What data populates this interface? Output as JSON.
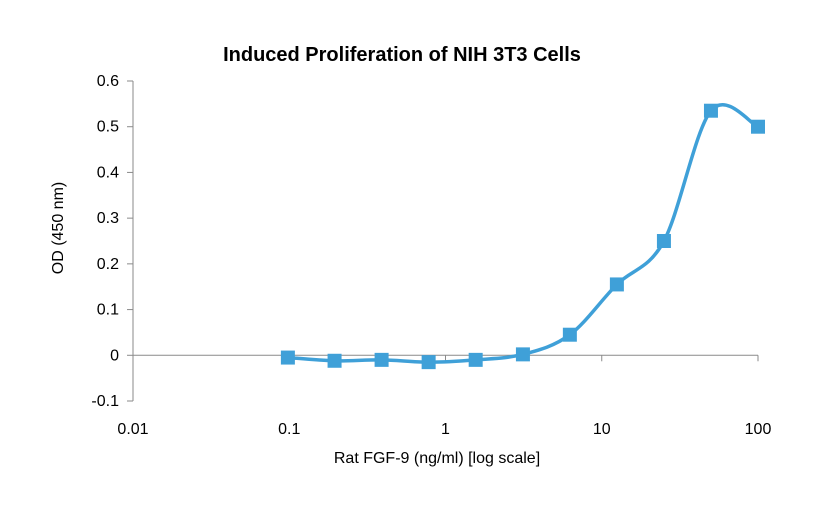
{
  "chart_data": {
    "type": "line",
    "title": "Induced Proliferation of NIH 3T3 Cells",
    "xlabel": "Rat FGF-9 (ng/ml) [log scale]",
    "ylabel": "OD (450 nm)",
    "x_scale": "log",
    "xlim": [
      0.01,
      100
    ],
    "ylim": [
      -0.1,
      0.6
    ],
    "x_ticks": [
      0.01,
      0.1,
      1,
      10,
      100
    ],
    "x_tick_labels": [
      "0.01",
      "0.1",
      "1",
      "10",
      "100"
    ],
    "y_ticks": [
      -0.1,
      0,
      0.1,
      0.2,
      0.3,
      0.4,
      0.5,
      0.6
    ],
    "y_tick_labels": [
      "-0.1",
      "0",
      "0.1",
      "0.2",
      "0.3",
      "0.4",
      "0.5",
      "0.6"
    ],
    "grid": false,
    "legend": "none",
    "line_style": "smooth",
    "marker": "square",
    "series": [
      {
        "color": "#3FA0D8",
        "x": [
          0.098,
          0.195,
          0.39,
          0.78,
          1.56,
          3.13,
          6.25,
          12.5,
          25,
          50,
          100
        ],
        "y": [
          -0.005,
          -0.012,
          -0.01,
          -0.015,
          -0.01,
          0.002,
          0.045,
          0.155,
          0.25,
          0.535,
          0.5
        ]
      }
    ]
  }
}
